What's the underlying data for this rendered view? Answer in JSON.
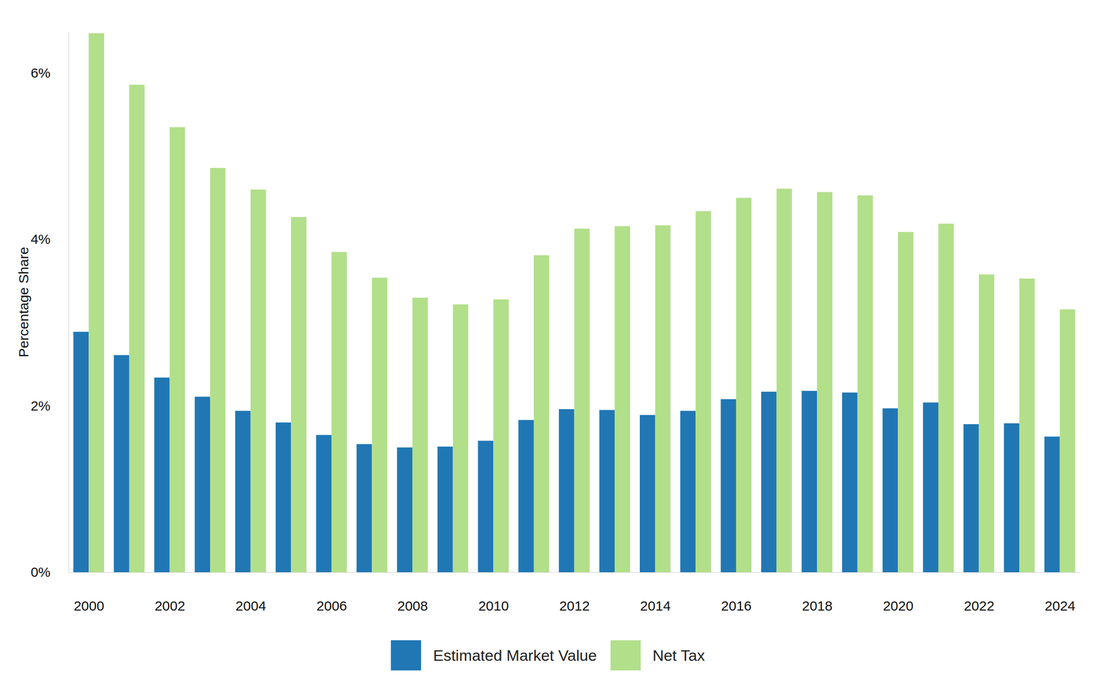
{
  "chart_data": {
    "type": "bar",
    "y_label": "Percentage Share",
    "categories": [
      "2000",
      null,
      "2002",
      null,
      "2004",
      null,
      "2006",
      null,
      "2008",
      null,
      "2010",
      null,
      "2012",
      null,
      "2014",
      null,
      "2016",
      null,
      "2018",
      null,
      "2020",
      null,
      "2022",
      null,
      "2024"
    ],
    "series": [
      {
        "name": "Estimated Market Value",
        "color": "#2077b4",
        "values": [
          2.89,
          2.61,
          2.34,
          2.11,
          1.94,
          1.8,
          1.65,
          1.54,
          1.5,
          1.51,
          1.58,
          1.83,
          1.96,
          1.95,
          1.89,
          1.94,
          2.08,
          2.17,
          2.18,
          2.16,
          1.97,
          2.04,
          1.78,
          1.79,
          1.63
        ]
      },
      {
        "name": "Net Tax",
        "color": "#b2df8a",
        "values": [
          6.48,
          5.86,
          5.35,
          4.86,
          4.6,
          4.27,
          3.85,
          3.54,
          3.3,
          3.22,
          3.28,
          3.81,
          4.13,
          4.16,
          4.17,
          4.34,
          4.5,
          4.61,
          4.57,
          4.53,
          4.09,
          4.19,
          3.58,
          3.53,
          3.16
        ]
      }
    ],
    "ylim": [
      0,
      6.5
    ],
    "yticks": [
      {
        "value": 0,
        "label": "0%"
      },
      {
        "value": 2,
        "label": "2%"
      },
      {
        "value": 4,
        "label": "4%"
      },
      {
        "value": 6,
        "label": "6%"
      }
    ],
    "grid": false,
    "legend": "bottom"
  }
}
